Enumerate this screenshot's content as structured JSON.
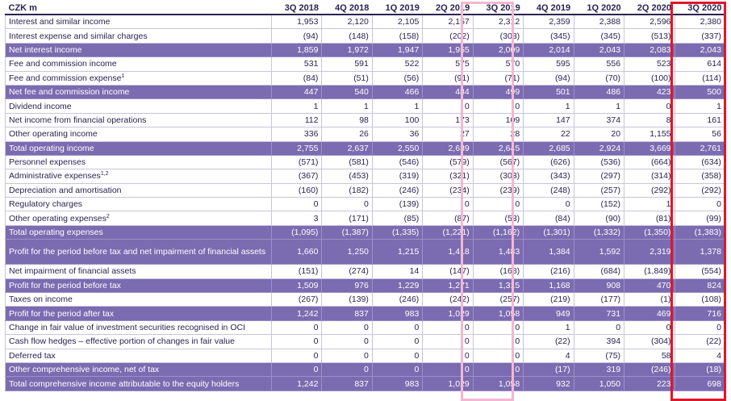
{
  "table": {
    "header_label": "CZK m",
    "columns": [
      "3Q 2018",
      "4Q 2018",
      "1Q 2019",
      "2Q 2019",
      "3Q 2019",
      "4Q 2019",
      "1Q 2020",
      "2Q 2020",
      "3Q 2020"
    ],
    "rows": [
      {
        "label": "Interest and similar income",
        "sup": "",
        "hl": false,
        "values": [
          "1,953",
          "2,120",
          "2,105",
          "2,157",
          "2,312",
          "2,359",
          "2,388",
          "2,596",
          "2,380"
        ]
      },
      {
        "label": "Interest expense and similar charges",
        "sup": "",
        "hl": false,
        "values": [
          "(94)",
          "(148)",
          "(158)",
          "(202)",
          "(303)",
          "(345)",
          "(345)",
          "(513)",
          "(337)"
        ]
      },
      {
        "label": "Net interest income",
        "sup": "",
        "hl": true,
        "values": [
          "1,859",
          "1,972",
          "1,947",
          "1,955",
          "2,009",
          "2,014",
          "2,043",
          "2,083",
          "2,043"
        ]
      },
      {
        "label": "Fee and commission income",
        "sup": "",
        "hl": false,
        "values": [
          "531",
          "591",
          "522",
          "575",
          "570",
          "595",
          "556",
          "523",
          "614"
        ]
      },
      {
        "label": "Fee and commission expense",
        "sup": "1",
        "hl": false,
        "values": [
          "(84)",
          "(51)",
          "(56)",
          "(91)",
          "(71)",
          "(94)",
          "(70)",
          "(100)",
          "(114)"
        ]
      },
      {
        "label": "Net fee and commission income",
        "sup": "",
        "hl": true,
        "values": [
          "447",
          "540",
          "466",
          "484",
          "499",
          "501",
          "486",
          "423",
          "500"
        ]
      },
      {
        "label": "Dividend income",
        "sup": "",
        "hl": false,
        "values": [
          "1",
          "1",
          "1",
          "0",
          "0",
          "1",
          "1",
          "0",
          "1"
        ]
      },
      {
        "label": "Net income from financial operations",
        "sup": "",
        "hl": false,
        "values": [
          "112",
          "98",
          "100",
          "173",
          "109",
          "147",
          "374",
          "8",
          "161"
        ]
      },
      {
        "label": "Other operating income",
        "sup": "",
        "hl": false,
        "values": [
          "336",
          "26",
          "36",
          "27",
          "28",
          "22",
          "20",
          "1,155",
          "56"
        ]
      },
      {
        "label": "Total operating income",
        "sup": "",
        "hl": true,
        "values": [
          "2,755",
          "2,637",
          "2,550",
          "2,639",
          "2,645",
          "2,685",
          "2,924",
          "3,669",
          "2,761"
        ]
      },
      {
        "label": "Personnel expenses",
        "sup": "",
        "hl": false,
        "values": [
          "(571)",
          "(581)",
          "(546)",
          "(579)",
          "(567)",
          "(626)",
          "(536)",
          "(664)",
          "(634)"
        ]
      },
      {
        "label": "Administrative expenses",
        "sup": "1,2",
        "hl": false,
        "values": [
          "(367)",
          "(453)",
          "(319)",
          "(321)",
          "(303)",
          "(343)",
          "(297)",
          "(314)",
          "(358)"
        ]
      },
      {
        "label": "Depreciation and amortisation",
        "sup": "",
        "hl": false,
        "values": [
          "(160)",
          "(182)",
          "(246)",
          "(234)",
          "(239)",
          "(248)",
          "(257)",
          "(292)",
          "(292)"
        ]
      },
      {
        "label": "Regulatory charges",
        "sup": "",
        "hl": false,
        "values": [
          "0",
          "0",
          "(139)",
          "0",
          "0",
          "0",
          "(152)",
          "1",
          "0"
        ]
      },
      {
        "label": "Other operating expenses",
        "sup": "2",
        "hl": false,
        "values": [
          "3",
          "(171)",
          "(85)",
          "(87)",
          "(53)",
          "(84)",
          "(90)",
          "(81)",
          "(99)"
        ]
      },
      {
        "label": "Total operating expenses",
        "sup": "",
        "hl": true,
        "values": [
          "(1,095)",
          "(1,387)",
          "(1,335)",
          "(1,221)",
          "(1,162)",
          "(1,301)",
          "(1,332)",
          "(1,350)",
          "(1,383)"
        ]
      },
      {
        "label": "Profit for the period before tax and net impairment of financial assets",
        "sup": "",
        "hl": true,
        "tall": true,
        "values": [
          "1,660",
          "1,250",
          "1,215",
          "1,418",
          "1,483",
          "1,384",
          "1,592",
          "2,319",
          "1,378"
        ]
      },
      {
        "label": "Net impairment of financial assets",
        "sup": "",
        "hl": false,
        "values": [
          "(151)",
          "(274)",
          "14",
          "(147)",
          "(168)",
          "(216)",
          "(684)",
          "(1,849)",
          "(554)"
        ]
      },
      {
        "label": "Profit for the period before tax",
        "sup": "",
        "hl": true,
        "values": [
          "1,509",
          "976",
          "1,229",
          "1,271",
          "1,315",
          "1,168",
          "908",
          "470",
          "824"
        ]
      },
      {
        "label": "Taxes on income",
        "sup": "",
        "hl": false,
        "values": [
          "(267)",
          "(139)",
          "(246)",
          "(242)",
          "(257)",
          "(219)",
          "(177)",
          "(1)",
          "(108)"
        ]
      },
      {
        "label": "Profit for the period after tax",
        "sup": "",
        "hl": true,
        "values": [
          "1,242",
          "837",
          "983",
          "1,029",
          "1,058",
          "949",
          "731",
          "469",
          "716"
        ]
      },
      {
        "label": "Change in fair value of investment securities recognised in OCI",
        "sup": "",
        "hl": false,
        "values": [
          "0",
          "0",
          "0",
          "0",
          "0",
          "1",
          "0",
          "0",
          "0"
        ]
      },
      {
        "label": "Cash flow hedges – effective portion of changes in fair value",
        "sup": "",
        "hl": false,
        "values": [
          "0",
          "0",
          "0",
          "0",
          "0",
          "(22)",
          "394",
          "(304)",
          "(22)"
        ]
      },
      {
        "label": "Deferred tax",
        "sup": "",
        "hl": false,
        "values": [
          "0",
          "0",
          "0",
          "0",
          "0",
          "4",
          "(75)",
          "58",
          "4"
        ]
      },
      {
        "label": "Other comprehensive income, net of tax",
        "sup": "",
        "hl": true,
        "values": [
          "0",
          "0",
          "0",
          "0",
          "0",
          "(17)",
          "319",
          "(246)",
          "(18)"
        ]
      },
      {
        "label": "Total comprehensive income attributable to the equity holders",
        "sup": "",
        "hl": true,
        "values": [
          "1,242",
          "837",
          "983",
          "1,029",
          "1,058",
          "932",
          "1,050",
          "223",
          "698"
        ]
      }
    ]
  },
  "colors": {
    "highlight_row": "#7b6bb0",
    "text": "#2a2350",
    "pink_box": "#f3b7d2",
    "red_box": "#e0162b"
  }
}
